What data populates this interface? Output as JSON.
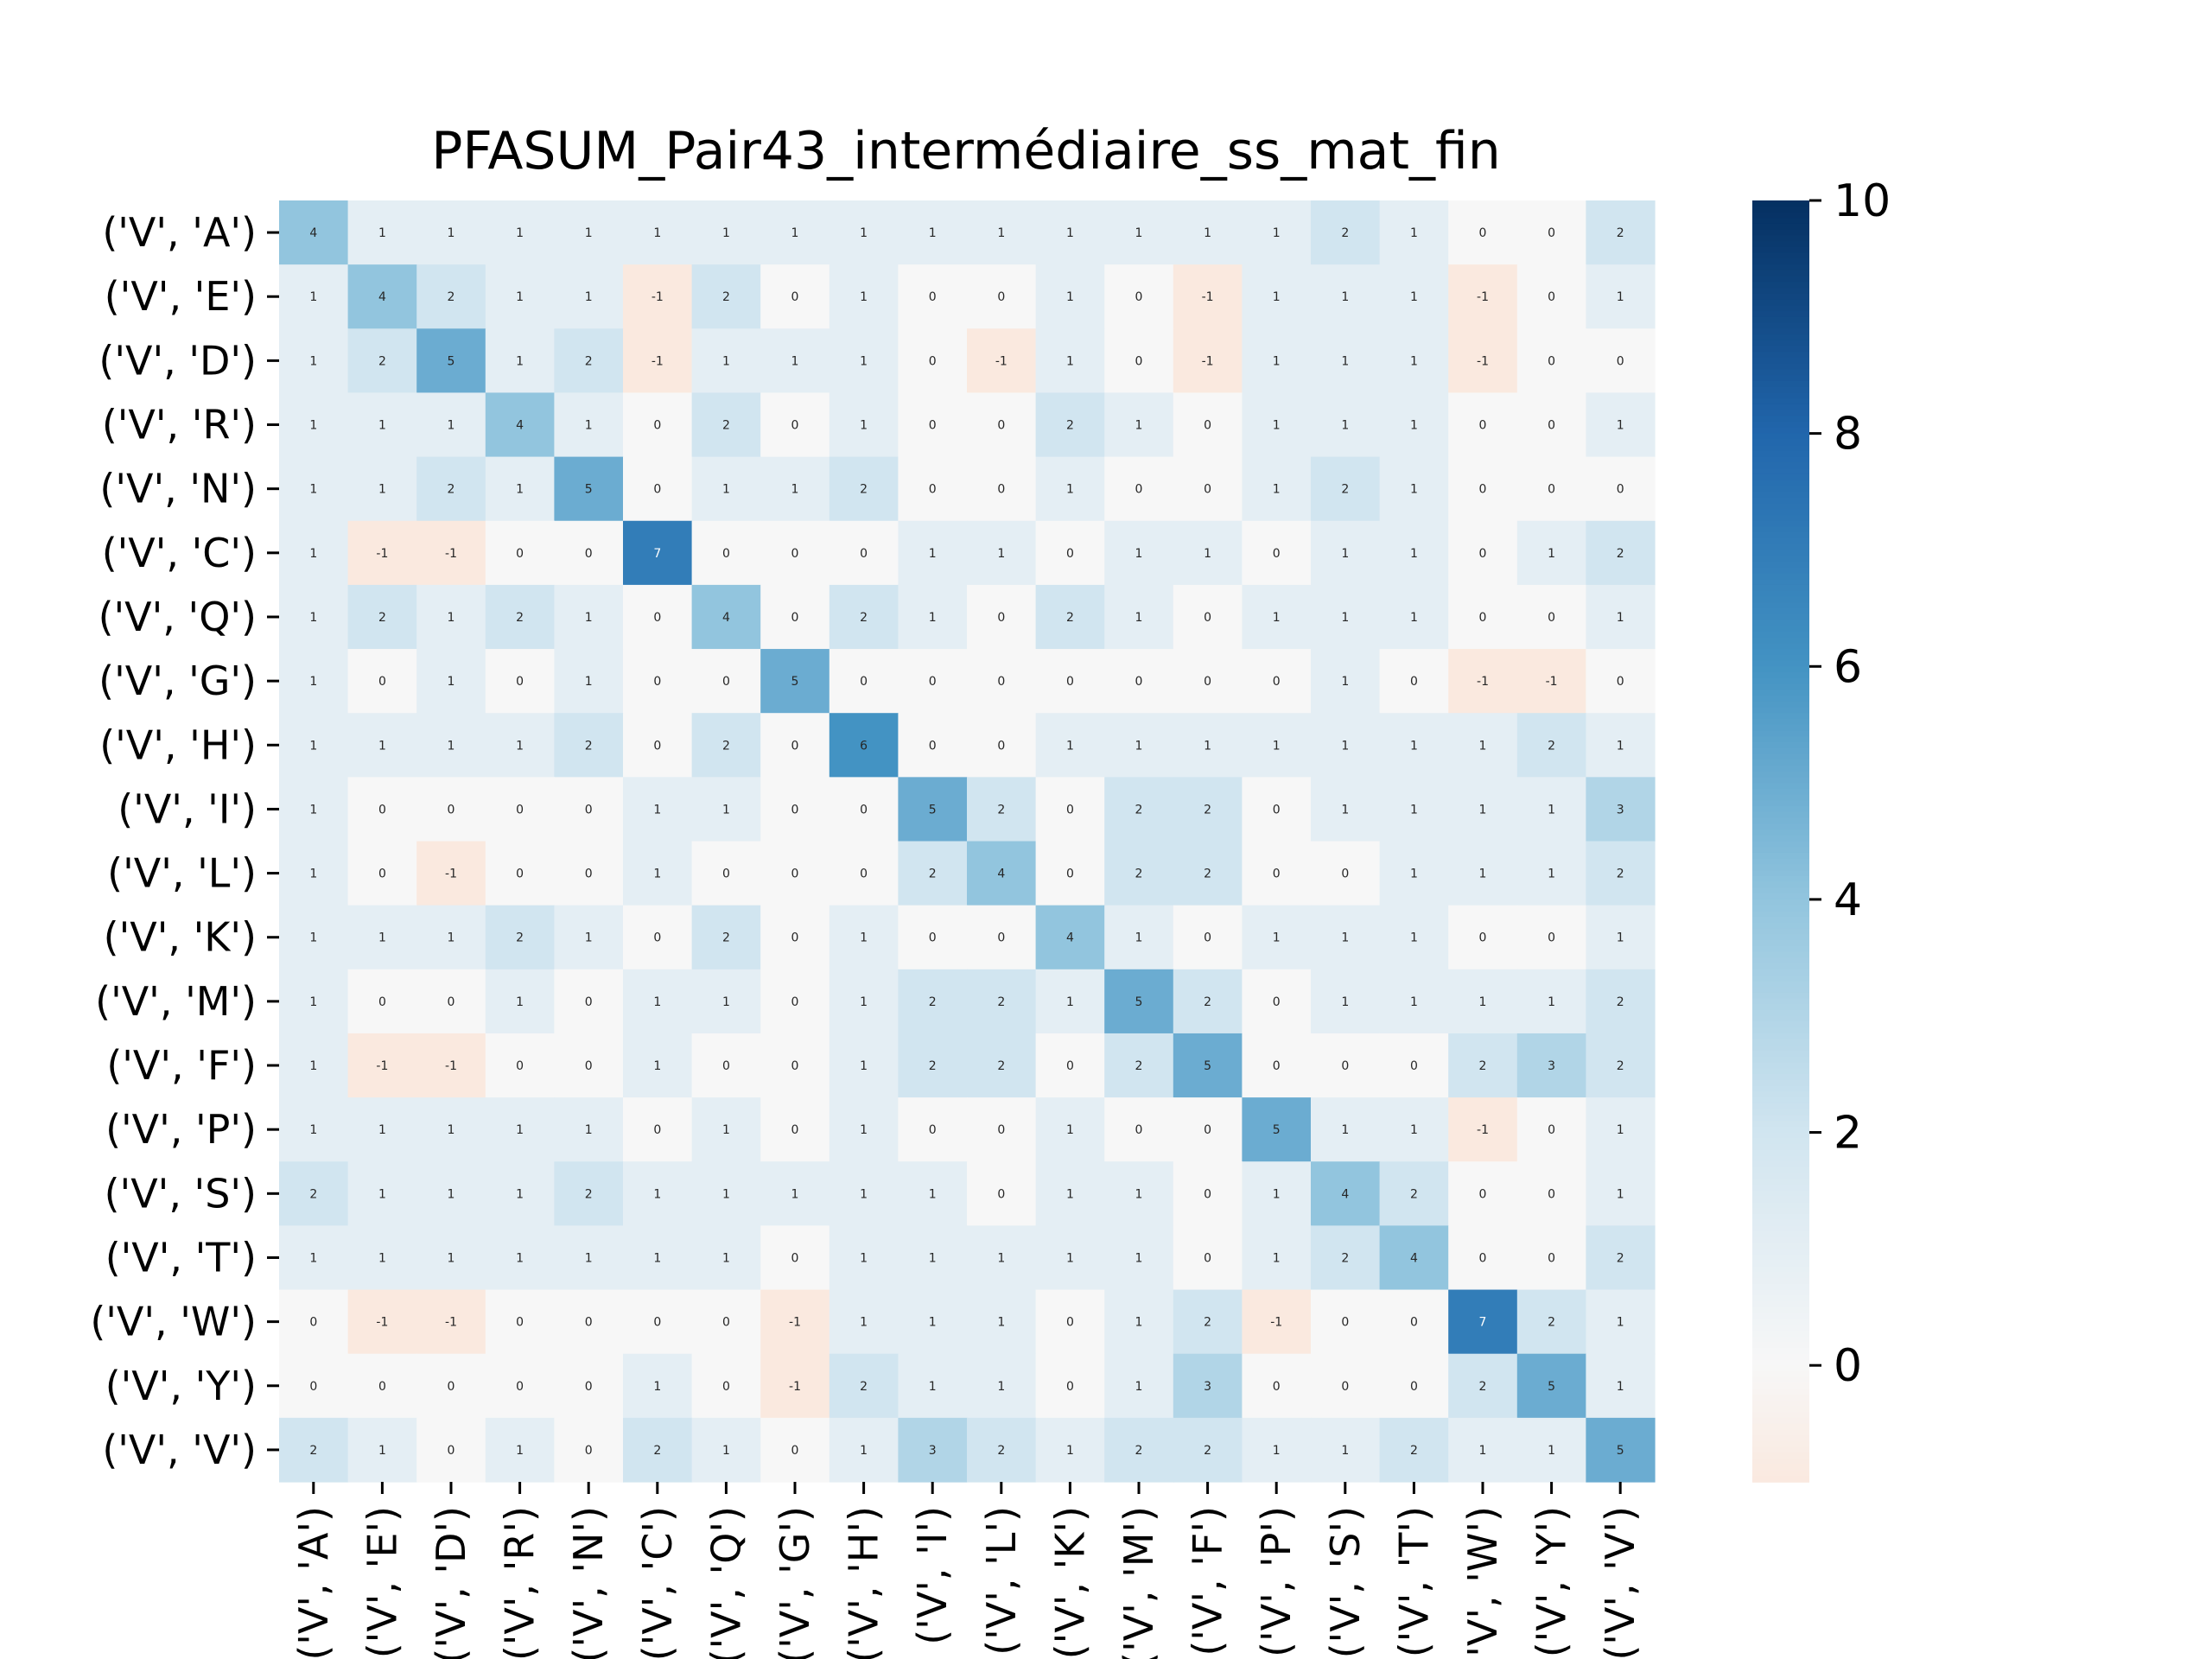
{
  "chart_data": {
    "type": "heatmap",
    "title": "PFASUM_Pair43_intermédiaire_ss_mat_fin",
    "xlabel": "",
    "ylabel": "",
    "labels": [
      "('V', 'A')",
      "('V', 'E')",
      "('V', 'D')",
      "('V', 'R')",
      "('V', 'N')",
      "('V', 'C')",
      "('V', 'Q')",
      "('V', 'G')",
      "('V', 'H')",
      "('V', 'I')",
      "('V', 'L')",
      "('V', 'K')",
      "('V', 'M')",
      "('V', 'F')",
      "('V', 'P')",
      "('V', 'S')",
      "('V', 'T')",
      "('V', 'W')",
      "('V', 'Y')",
      "('V', 'V')"
    ],
    "values": [
      [
        4,
        1,
        1,
        1,
        1,
        1,
        1,
        1,
        1,
        1,
        1,
        1,
        1,
        1,
        1,
        2,
        1,
        0,
        0,
        2
      ],
      [
        1,
        4,
        2,
        1,
        1,
        -1,
        2,
        0,
        1,
        0,
        0,
        1,
        0,
        -1,
        1,
        1,
        1,
        -1,
        0,
        1
      ],
      [
        1,
        2,
        5,
        1,
        2,
        -1,
        1,
        1,
        1,
        0,
        -1,
        1,
        0,
        -1,
        1,
        1,
        1,
        -1,
        0,
        0
      ],
      [
        1,
        1,
        1,
        4,
        1,
        0,
        2,
        0,
        1,
        0,
        0,
        2,
        1,
        0,
        1,
        1,
        1,
        0,
        0,
        1
      ],
      [
        1,
        1,
        2,
        1,
        5,
        0,
        1,
        1,
        2,
        0,
        0,
        1,
        0,
        0,
        1,
        2,
        1,
        0,
        0,
        0
      ],
      [
        1,
        -1,
        -1,
        0,
        0,
        7,
        0,
        0,
        0,
        1,
        1,
        0,
        1,
        1,
        0,
        1,
        1,
        0,
        1,
        2
      ],
      [
        1,
        2,
        1,
        2,
        1,
        0,
        4,
        0,
        2,
        1,
        0,
        2,
        1,
        0,
        1,
        1,
        1,
        0,
        0,
        1
      ],
      [
        1,
        0,
        1,
        0,
        1,
        0,
        0,
        5,
        0,
        0,
        0,
        0,
        0,
        0,
        0,
        1,
        0,
        -1,
        -1,
        0
      ],
      [
        1,
        1,
        1,
        1,
        2,
        0,
        2,
        0,
        6,
        0,
        0,
        1,
        1,
        1,
        1,
        1,
        1,
        1,
        2,
        1
      ],
      [
        1,
        0,
        0,
        0,
        0,
        1,
        1,
        0,
        0,
        5,
        2,
        0,
        2,
        2,
        0,
        1,
        1,
        1,
        1,
        3
      ],
      [
        1,
        0,
        -1,
        0,
        0,
        1,
        0,
        0,
        0,
        2,
        4,
        0,
        2,
        2,
        0,
        0,
        1,
        1,
        1,
        2
      ],
      [
        1,
        1,
        1,
        2,
        1,
        0,
        2,
        0,
        1,
        0,
        0,
        4,
        1,
        0,
        1,
        1,
        1,
        0,
        0,
        1
      ],
      [
        1,
        0,
        0,
        1,
        0,
        1,
        1,
        0,
        1,
        2,
        2,
        1,
        5,
        2,
        0,
        1,
        1,
        1,
        1,
        2
      ],
      [
        1,
        -1,
        -1,
        0,
        0,
        1,
        0,
        0,
        1,
        2,
        2,
        0,
        2,
        5,
        0,
        0,
        0,
        2,
        3,
        2
      ],
      [
        1,
        1,
        1,
        1,
        1,
        0,
        1,
        0,
        1,
        0,
        0,
        1,
        0,
        0,
        5,
        1,
        1,
        -1,
        0,
        1
      ],
      [
        2,
        1,
        1,
        1,
        2,
        1,
        1,
        1,
        1,
        1,
        0,
        1,
        1,
        0,
        1,
        4,
        2,
        0,
        0,
        1
      ],
      [
        1,
        1,
        1,
        1,
        1,
        1,
        1,
        0,
        1,
        1,
        1,
        1,
        1,
        0,
        1,
        2,
        4,
        0,
        0,
        2
      ],
      [
        0,
        -1,
        -1,
        0,
        0,
        0,
        0,
        -1,
        1,
        1,
        1,
        0,
        1,
        2,
        -1,
        0,
        0,
        7,
        2,
        1
      ],
      [
        0,
        0,
        0,
        0,
        0,
        1,
        0,
        -1,
        2,
        1,
        1,
        0,
        1,
        3,
        0,
        0,
        0,
        2,
        5,
        1
      ],
      [
        2,
        1,
        0,
        1,
        0,
        2,
        1,
        0,
        1,
        3,
        2,
        1,
        2,
        2,
        1,
        1,
        2,
        1,
        1,
        5
      ]
    ],
    "colorbar": {
      "colormap": "RdBu (centered at 0)",
      "vmin": -1,
      "vmax": 10,
      "ticks": [
        0,
        2,
        4,
        6,
        8,
        10
      ],
      "tick_labels": [
        "0",
        "2",
        "4",
        "6",
        "8",
        "10"
      ]
    },
    "grid": false,
    "legend": "colorbar-right"
  }
}
